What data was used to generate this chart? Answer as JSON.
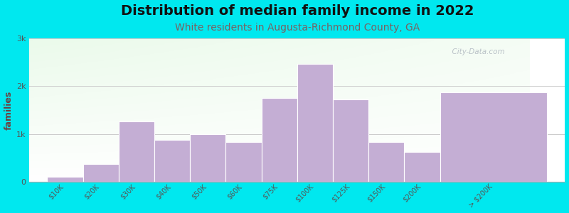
{
  "title": "Distribution of median family income in 2022",
  "subtitle": "White residents in Augusta-Richmond County, GA",
  "ylabel": "families",
  "categories": [
    "$10K",
    "$20K",
    "$30K",
    "$40K",
    "$50K",
    "$60K",
    "$75K",
    "$100K",
    "$125K",
    "$150K",
    "$200K",
    "> $200K"
  ],
  "values": [
    100,
    370,
    1270,
    870,
    1000,
    830,
    1750,
    2470,
    1720,
    830,
    620,
    1870
  ],
  "bar_widths": [
    1,
    1,
    1,
    1,
    1,
    1,
    1,
    1,
    1,
    1,
    1,
    3
  ],
  "bar_color": "#c4aed4",
  "ylim": [
    0,
    3000
  ],
  "yticks": [
    0,
    1000,
    2000,
    3000
  ],
  "ytick_labels": [
    "0",
    "1k",
    "2k",
    "3k"
  ],
  "background_outer": "#00e8ef",
  "title_fontsize": 14,
  "subtitle_fontsize": 10,
  "subtitle_color": "#7a6060",
  "ylabel_color": "#6b4040",
  "tick_color": "#555555",
  "watermark": "  City-Data.com",
  "grid_color": "#cccccc",
  "title_color": "#111111"
}
